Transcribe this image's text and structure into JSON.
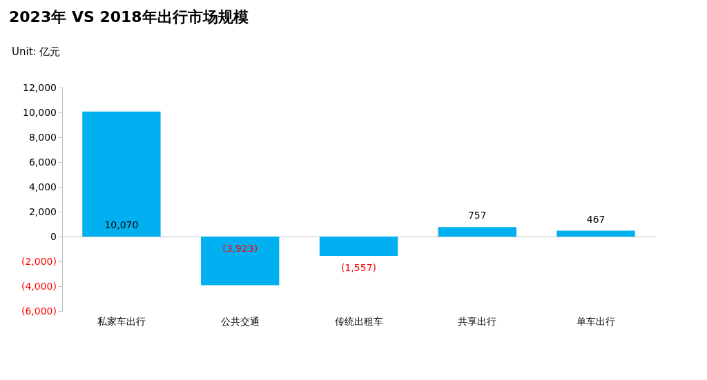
{
  "chart_data": {
    "type": "bar",
    "title": "2023年 VS 2018年出行市场规模",
    "ylabel": "Unit: 亿元",
    "categories": [
      "私家车出行",
      "公共交通",
      "传统出租车",
      "共享出行",
      "单车出行"
    ],
    "values": [
      10070,
      -3923,
      -1557,
      757,
      467
    ],
    "value_labels": [
      "10,070",
      "(3,923)",
      "(1,557)",
      "757",
      "467"
    ],
    "color": "#00b0f0",
    "ylim": [
      -6000,
      12000
    ],
    "yticks": [
      {
        "value": -6000,
        "label": "(6,000)"
      },
      {
        "value": -4000,
        "label": "(4,000)"
      },
      {
        "value": -2000,
        "label": "(2,000)"
      },
      0,
      {
        "value": 2000,
        "label": "2,000"
      },
      {
        "value": 4000,
        "label": "4,000"
      },
      {
        "value": 6000,
        "label": "6,000"
      },
      {
        "value": 8000,
        "label": "8,000"
      },
      {
        "value": 10000,
        "label": "10,000"
      },
      {
        "value": 12000,
        "label": "12,000"
      }
    ]
  }
}
